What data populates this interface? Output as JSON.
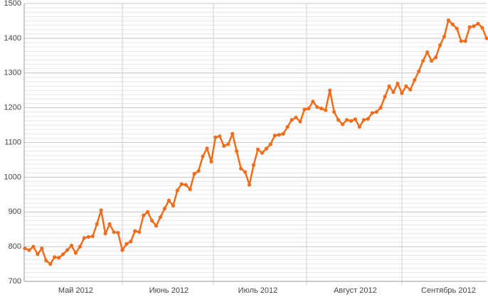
{
  "chart_data": {
    "type": "line",
    "categories": [
      null,
      null,
      null,
      null,
      null,
      null,
      null,
      null,
      null,
      null,
      null,
      null,
      "Май 2012",
      null,
      null,
      null,
      null,
      null,
      null,
      null,
      null,
      null,
      null,
      null,
      null,
      null,
      null,
      null,
      null,
      null,
      null,
      null,
      null,
      null,
      "Июнь 2012",
      null,
      null,
      null,
      null,
      null,
      null,
      null,
      null,
      null,
      null,
      null,
      null,
      null,
      null,
      null,
      null,
      null,
      null,
      null,
      null,
      "Июль 2012",
      null,
      null,
      null,
      null,
      null,
      null,
      null,
      null,
      null,
      null,
      null,
      null,
      null,
      null,
      null,
      null,
      null,
      null,
      null,
      null,
      null,
      null,
      "Август 2012",
      null,
      null,
      null,
      null,
      null,
      null,
      null,
      null,
      null,
      null,
      null,
      null,
      null,
      null,
      null,
      null,
      null,
      null,
      null,
      null,
      null,
      "Сентябрь 2012",
      null,
      null,
      null,
      null,
      null,
      null,
      null,
      null,
      null
    ],
    "series": [
      {
        "color": "#f26d1b",
        "values": [
          795,
          790,
          800,
          778,
          795,
          760,
          750,
          770,
          768,
          778,
          790,
          803,
          782,
          800,
          825,
          828,
          830,
          865,
          905,
          838,
          865,
          842,
          840,
          790,
          808,
          815,
          845,
          842,
          890,
          900,
          875,
          860,
          885,
          910,
          933,
          918,
          962,
          980,
          978,
          965,
          1010,
          1018,
          1060,
          1083,
          1045,
          1115,
          1118,
          1090,
          1095,
          1125,
          1075,
          1025,
          1015,
          978,
          1035,
          1080,
          1070,
          1082,
          1095,
          1120,
          1122,
          1125,
          1145,
          1165,
          1172,
          1160,
          1195,
          1198,
          1218,
          1202,
          1198,
          1193,
          1250,
          1188,
          1165,
          1152,
          1165,
          1162,
          1167,
          1145,
          1165,
          1168,
          1185,
          1188,
          1200,
          1232,
          1262,
          1245,
          1270,
          1242,
          1262,
          1252,
          1280,
          1305,
          1335,
          1360,
          1335,
          1345,
          1380,
          1405,
          1452,
          1440,
          1428,
          1392,
          1392,
          1432,
          1435,
          1442,
          1430,
          1400
        ]
      }
    ],
    "ylim": [
      700,
      1500
    ],
    "yticks": [
      700,
      800,
      900,
      1000,
      1100,
      1200,
      1300,
      1400,
      1500
    ],
    "grid": true
  }
}
